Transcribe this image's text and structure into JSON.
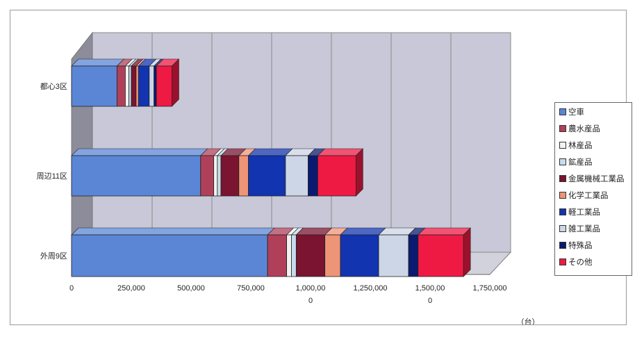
{
  "chart_data": {
    "type": "bar",
    "orientation": "horizontal",
    "stacked": true,
    "three_d": true,
    "categories": [
      "都心3区",
      "周辺11区",
      "外周9区"
    ],
    "unit_label": "（台）",
    "xlim": [
      0,
      1750000
    ],
    "ticks": [
      {
        "value": 0,
        "label": "0"
      },
      {
        "value": 250000,
        "label": "250,000"
      },
      {
        "value": 500000,
        "label": "500,000"
      },
      {
        "value": 750000,
        "label": "750,000"
      },
      {
        "value": 1000000,
        "label": "1,000,00\n0"
      },
      {
        "value": 1250000,
        "label": "1,250,000"
      },
      {
        "value": 1500000,
        "label": "1,500,00\n0"
      },
      {
        "value": 1750000,
        "label": "1,750,000"
      }
    ],
    "legend_position": "right",
    "series": [
      {
        "name": "空車",
        "color": "#5b86d6",
        "values": [
          190000,
          540000,
          820000
        ]
      },
      {
        "name": "農水産品",
        "color": "#b0405a",
        "values": [
          35000,
          55000,
          80000
        ]
      },
      {
        "name": "林産品",
        "color": "#f2f2f2",
        "values": [
          15000,
          15000,
          20000
        ]
      },
      {
        "name": "鉱産品",
        "color": "#c7dcea",
        "values": [
          10000,
          15000,
          20000
        ]
      },
      {
        "name": "金属機械工業品",
        "color": "#7a1430",
        "values": [
          20000,
          75000,
          120000
        ]
      },
      {
        "name": "化学工業品",
        "color": "#ee9477",
        "values": [
          10000,
          40000,
          65000
        ]
      },
      {
        "name": "軽工業品",
        "color": "#1234b0",
        "values": [
          45000,
          155000,
          160000
        ]
      },
      {
        "name": "雑工業品",
        "color": "#ccd6e6",
        "values": [
          20000,
          95000,
          125000
        ]
      },
      {
        "name": "特殊品",
        "color": "#0a1a70",
        "values": [
          10000,
          40000,
          40000
        ]
      },
      {
        "name": "その他",
        "color": "#ee1a44",
        "values": [
          65000,
          160000,
          190000
        ]
      }
    ]
  }
}
